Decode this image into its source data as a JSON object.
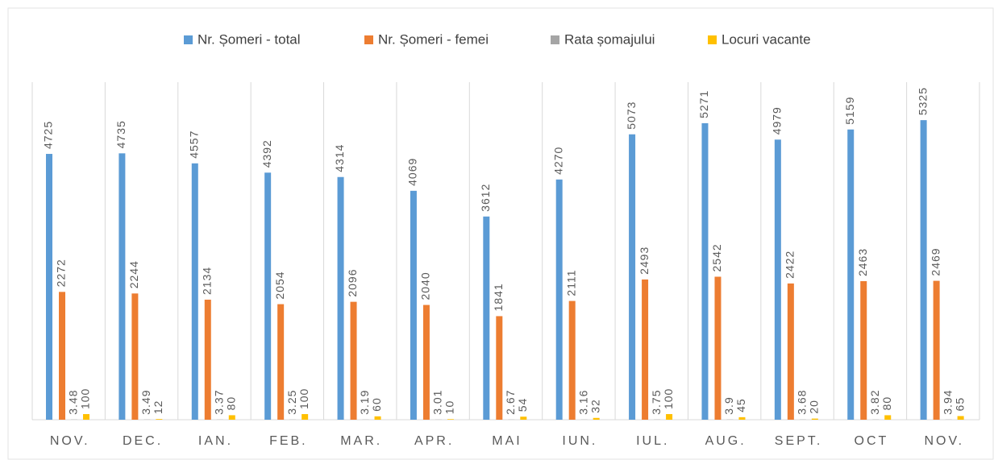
{
  "chart_data": {
    "type": "bar",
    "categories": [
      "NOV.",
      "DEC.",
      "IAN.",
      "FEB.",
      "MAR.",
      "APR.",
      "MAI",
      "IUN.",
      "IUL.",
      "AUG.",
      "SEPT.",
      "OCT",
      "NOV."
    ],
    "series": [
      {
        "name": "Nr. Șomeri - total",
        "color": "#5b9bd5",
        "values": [
          4725,
          4735,
          4557,
          4392,
          4314,
          4069,
          3612,
          4270,
          5073,
          5271,
          4979,
          5159,
          5325
        ]
      },
      {
        "name": "Nr. Șomeri - femei",
        "color": "#ed7d31",
        "values": [
          2272,
          2244,
          2134,
          2054,
          2096,
          2040,
          1841,
          2111,
          2493,
          2542,
          2422,
          2463,
          2469
        ]
      },
      {
        "name": "Rata șomajului",
        "color": "#a5a5a5",
        "values": [
          3.48,
          3.49,
          3.37,
          3.25,
          3.19,
          3.01,
          2.67,
          3.16,
          3.75,
          3.9,
          3.68,
          3.82,
          3.94
        ]
      },
      {
        "name": "Locuri vacante",
        "color": "#ffc000",
        "values": [
          100,
          12,
          80,
          100,
          60,
          10,
          54,
          32,
          100,
          45,
          20,
          80,
          65
        ]
      }
    ],
    "ylim": [
      0,
      6000
    ],
    "legend": "top"
  }
}
